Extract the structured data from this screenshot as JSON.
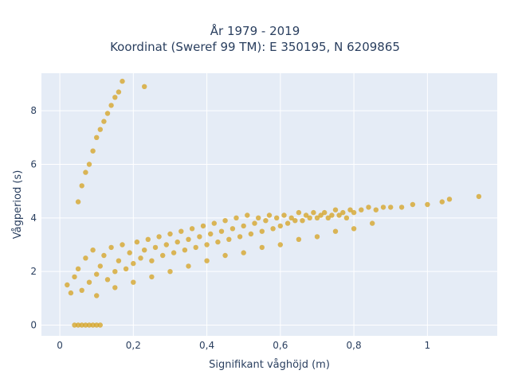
{
  "chart_data": {
    "type": "scatter",
    "title_line1": "År 1979 - 2019",
    "title_line2": "Koordinat (Sweref 99 TM): E 350195, N 6209865",
    "xlabel": "Signifikant våghöjd (m)",
    "ylabel": "Vågperiod (s)",
    "xlim": [
      -0.05,
      1.19
    ],
    "ylim": [
      -0.4,
      9.4
    ],
    "x_ticks": [
      0,
      0.2,
      0.4,
      0.6,
      0.8,
      1
    ],
    "x_tick_labels": [
      "0",
      "0,2",
      "0,4",
      "0,6",
      "0,8",
      "1"
    ],
    "y_ticks": [
      0,
      2,
      4,
      6,
      8
    ],
    "y_tick_labels": [
      "0",
      "2",
      "4",
      "6",
      "8"
    ],
    "grid": true,
    "marker_color": "#d4a21f",
    "background_color": "#e5ecf6",
    "series": [
      {
        "points": [
          [
            0.02,
            1.5
          ],
          [
            0.03,
            1.2
          ],
          [
            0.04,
            1.8
          ],
          [
            0.05,
            2.1
          ],
          [
            0.06,
            1.3
          ],
          [
            0.07,
            2.5
          ],
          [
            0.08,
            1.6
          ],
          [
            0.09,
            2.8
          ],
          [
            0.1,
            1.9
          ],
          [
            0.11,
            2.2
          ],
          [
            0.12,
            2.6
          ],
          [
            0.13,
            1.7
          ],
          [
            0.14,
            2.9
          ],
          [
            0.15,
            2.0
          ],
          [
            0.16,
            2.4
          ],
          [
            0.17,
            3.0
          ],
          [
            0.18,
            2.1
          ],
          [
            0.19,
            2.7
          ],
          [
            0.2,
            2.3
          ],
          [
            0.21,
            3.1
          ],
          [
            0.22,
            2.5
          ],
          [
            0.23,
            2.8
          ],
          [
            0.24,
            3.2
          ],
          [
            0.25,
            2.4
          ],
          [
            0.26,
            2.9
          ],
          [
            0.27,
            3.3
          ],
          [
            0.28,
            2.6
          ],
          [
            0.29,
            3.0
          ],
          [
            0.3,
            3.4
          ],
          [
            0.31,
            2.7
          ],
          [
            0.32,
            3.1
          ],
          [
            0.33,
            3.5
          ],
          [
            0.34,
            2.8
          ],
          [
            0.35,
            3.2
          ],
          [
            0.36,
            3.6
          ],
          [
            0.37,
            2.9
          ],
          [
            0.38,
            3.3
          ],
          [
            0.39,
            3.7
          ],
          [
            0.4,
            3.0
          ],
          [
            0.41,
            3.4
          ],
          [
            0.42,
            3.8
          ],
          [
            0.43,
            3.1
          ],
          [
            0.44,
            3.5
          ],
          [
            0.45,
            3.9
          ],
          [
            0.46,
            3.2
          ],
          [
            0.47,
            3.6
          ],
          [
            0.48,
            4.0
          ],
          [
            0.49,
            3.3
          ],
          [
            0.5,
            3.7
          ],
          [
            0.51,
            4.1
          ],
          [
            0.52,
            3.4
          ],
          [
            0.53,
            3.8
          ],
          [
            0.54,
            4.0
          ],
          [
            0.55,
            3.5
          ],
          [
            0.56,
            3.9
          ],
          [
            0.57,
            4.1
          ],
          [
            0.58,
            3.6
          ],
          [
            0.59,
            4.0
          ],
          [
            0.6,
            3.7
          ],
          [
            0.61,
            4.1
          ],
          [
            0.62,
            3.8
          ],
          [
            0.63,
            4.0
          ],
          [
            0.64,
            3.9
          ],
          [
            0.65,
            4.2
          ],
          [
            0.66,
            3.9
          ],
          [
            0.67,
            4.1
          ],
          [
            0.68,
            4.0
          ],
          [
            0.69,
            4.2
          ],
          [
            0.7,
            4.0
          ],
          [
            0.71,
            4.1
          ],
          [
            0.72,
            4.2
          ],
          [
            0.73,
            4.0
          ],
          [
            0.74,
            4.1
          ],
          [
            0.75,
            4.3
          ],
          [
            0.76,
            4.1
          ],
          [
            0.77,
            4.2
          ],
          [
            0.78,
            4.0
          ],
          [
            0.79,
            4.3
          ],
          [
            0.8,
            4.2
          ],
          [
            0.82,
            4.3
          ],
          [
            0.84,
            4.4
          ],
          [
            0.86,
            4.3
          ],
          [
            0.88,
            4.4
          ],
          [
            0.9,
            4.4
          ],
          [
            0.93,
            4.4
          ],
          [
            0.96,
            4.5
          ],
          [
            1.0,
            4.5
          ],
          [
            1.04,
            4.6
          ],
          [
            1.06,
            4.7
          ],
          [
            1.14,
            4.8
          ],
          [
            0.1,
            1.1
          ],
          [
            0.15,
            1.4
          ],
          [
            0.2,
            1.6
          ],
          [
            0.25,
            1.8
          ],
          [
            0.3,
            2.0
          ],
          [
            0.35,
            2.2
          ],
          [
            0.4,
            2.4
          ],
          [
            0.45,
            2.6
          ],
          [
            0.5,
            2.7
          ],
          [
            0.55,
            2.9
          ],
          [
            0.6,
            3.0
          ],
          [
            0.65,
            3.2
          ],
          [
            0.7,
            3.3
          ],
          [
            0.75,
            3.5
          ],
          [
            0.8,
            3.6
          ],
          [
            0.85,
            3.8
          ],
          [
            0.05,
            4.6
          ],
          [
            0.06,
            5.2
          ],
          [
            0.07,
            5.7
          ],
          [
            0.08,
            6.0
          ],
          [
            0.09,
            6.5
          ],
          [
            0.1,
            7.0
          ],
          [
            0.11,
            7.3
          ],
          [
            0.12,
            7.6
          ],
          [
            0.13,
            7.9
          ],
          [
            0.14,
            8.2
          ],
          [
            0.15,
            8.5
          ],
          [
            0.16,
            8.7
          ],
          [
            0.17,
            9.1
          ],
          [
            0.23,
            8.9
          ],
          [
            0.04,
            0.0
          ],
          [
            0.05,
            0.0
          ],
          [
            0.06,
            0.0
          ],
          [
            0.07,
            0.0
          ],
          [
            0.08,
            0.0
          ],
          [
            0.09,
            0.0
          ],
          [
            0.1,
            0.0
          ],
          [
            0.11,
            0.0
          ]
        ]
      }
    ]
  }
}
